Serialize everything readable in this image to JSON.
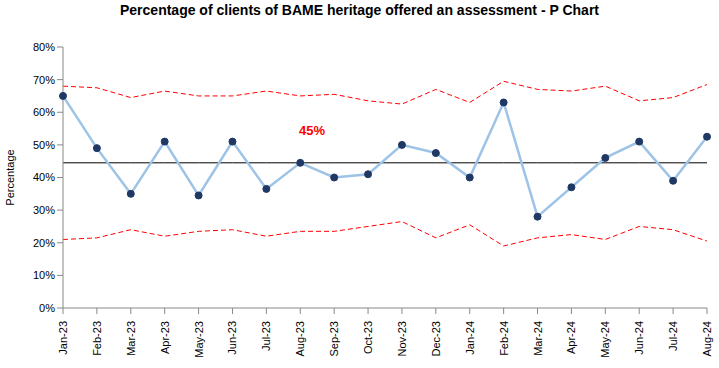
{
  "chart_data": {
    "type": "line",
    "title": "Percentage of clients of BAME heritage offered an assessment - P Chart",
    "y_label": "Percentage",
    "categories": [
      "Jan-23",
      "Feb-23",
      "Mar-23",
      "Apr-23",
      "May-23",
      "Jun-23",
      "Jul-23",
      "Aug-23",
      "Sep-23",
      "Oct-23",
      "Nov-23",
      "Dec-23",
      "Jan-24",
      "Feb-24",
      "Mar-24",
      "Apr-24",
      "May-24",
      "Jun-24",
      "Jul-24",
      "Aug-24"
    ],
    "series": [
      {
        "values": [
          65,
          49,
          35,
          51,
          34.5,
          51,
          36.5,
          44.5,
          40,
          41,
          50,
          47.5,
          40,
          63,
          28,
          37,
          46,
          51,
          39,
          52.5
        ],
        "color": "#9dc3e6",
        "marker": "circle",
        "line_style": "solid"
      },
      {
        "values": [
          68,
          67.5,
          64.5,
          66.5,
          65,
          65,
          66.5,
          65,
          65.5,
          63.5,
          62.5,
          67,
          63,
          69.5,
          67,
          66.5,
          68,
          63.5,
          64.5,
          68.5
        ],
        "color": "#ff0000",
        "marker": "none",
        "line_style": "dashed"
      },
      {
        "values": [
          21,
          21.5,
          24,
          22,
          23.5,
          24,
          22,
          23.5,
          23.5,
          25,
          26.5,
          21.5,
          25.5,
          19,
          21.5,
          22.5,
          21,
          25,
          24,
          20.5
        ],
        "color": "#ff0000",
        "marker": "none",
        "line_style": "dashed"
      },
      {
        "values": [
          44.5,
          44.5,
          44.5,
          44.5,
          44.5,
          44.5,
          44.5,
          44.5,
          44.5,
          44.5,
          44.5,
          44.5,
          44.5,
          44.5,
          44.5,
          44.5,
          44.5,
          44.5,
          44.5,
          44.5
        ],
        "color": "#000000",
        "marker": "none",
        "line_style": "solid"
      }
    ],
    "annotations": [
      {
        "text": "45%",
        "color": "#ff0000"
      }
    ],
    "ylim": [
      0,
      80
    ],
    "yticks": [
      {
        "value": 0,
        "label": "0%"
      },
      {
        "value": 10,
        "label": "10%"
      },
      {
        "value": 20,
        "label": "20%"
      },
      {
        "value": 30,
        "label": "30%"
      },
      {
        "value": 40,
        "label": "40%"
      },
      {
        "value": 50,
        "label": "50%"
      },
      {
        "value": 60,
        "label": "60%"
      },
      {
        "value": 70,
        "label": "70%"
      },
      {
        "value": 80,
        "label": "80%"
      }
    ],
    "grid": false
  }
}
